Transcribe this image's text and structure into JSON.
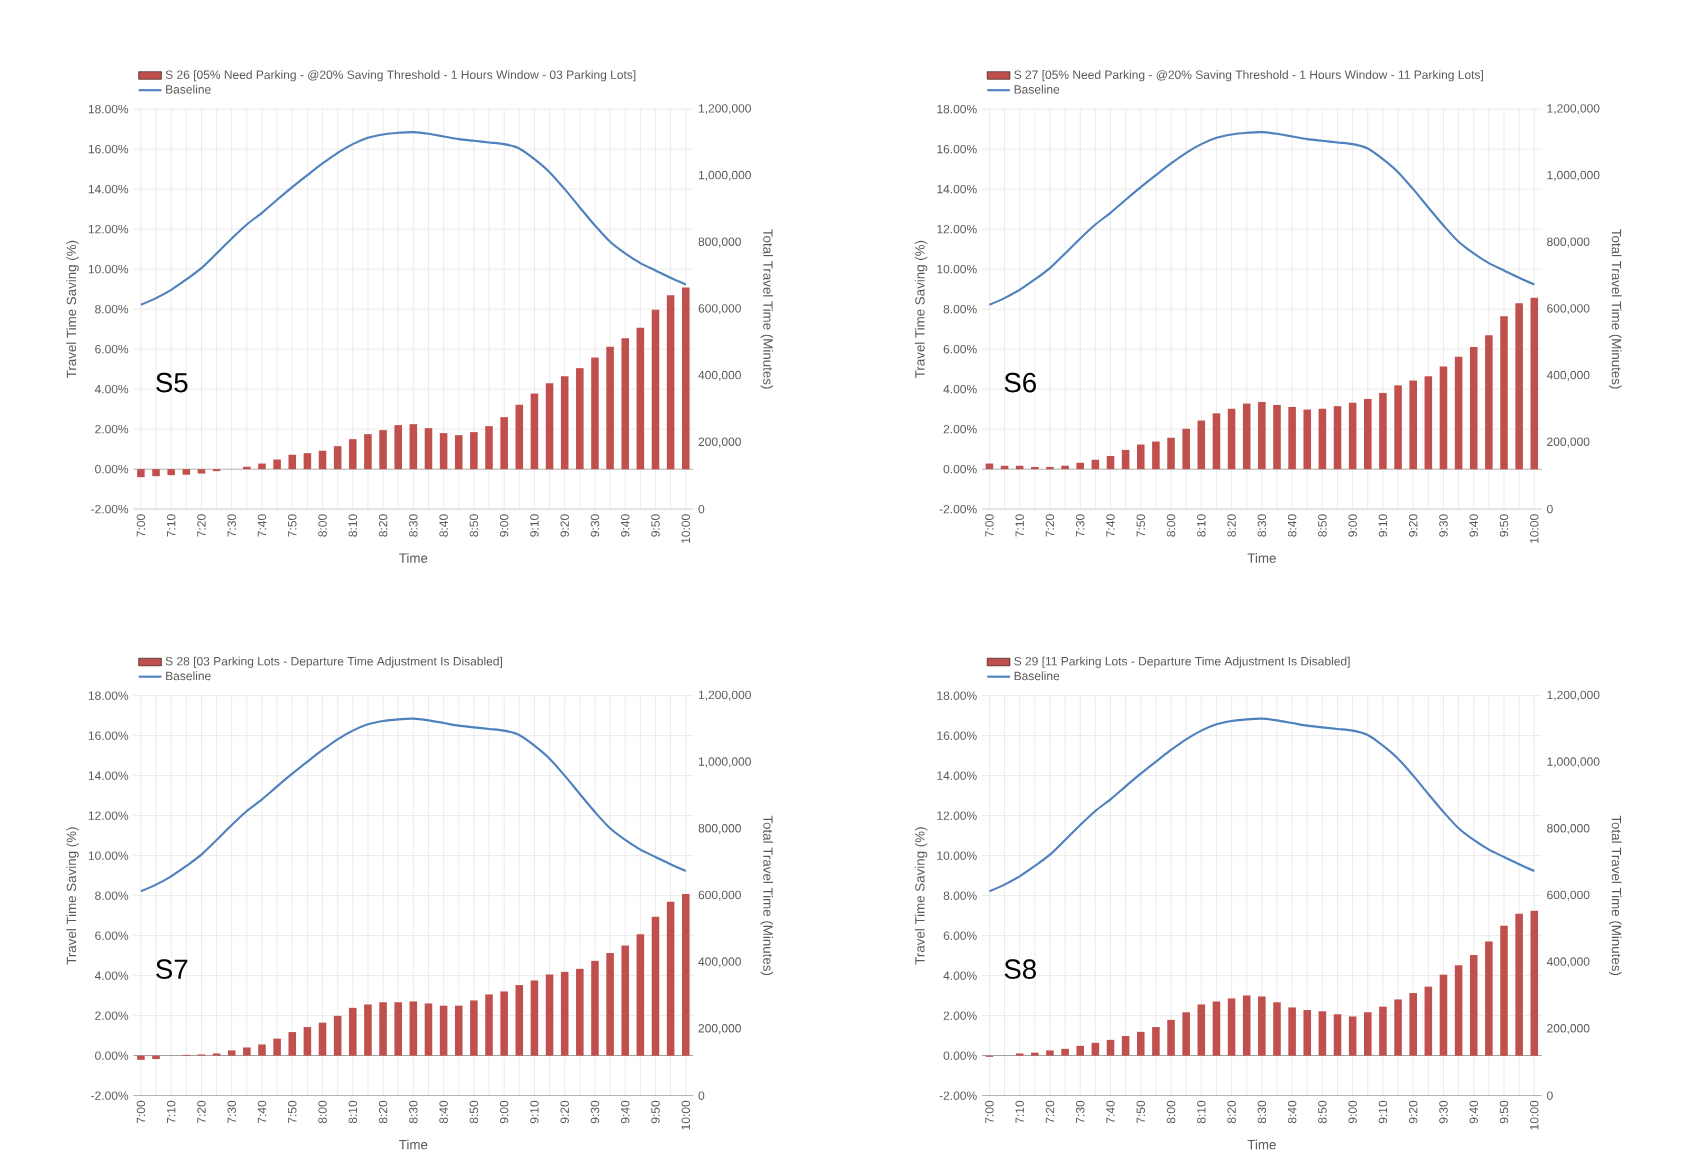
{
  "chart_data": [
    {
      "type": "bar",
      "categories": [
        "7:00",
        null,
        "7:10",
        null,
        "7:20",
        null,
        "7:30",
        null,
        "7:40",
        null,
        "7:50",
        null,
        "8:00",
        null,
        "8:10",
        null,
        "8:20",
        null,
        "8:30",
        null,
        "8:40",
        null,
        "8:50",
        null,
        "9:00",
        null,
        "9:10",
        null,
        "9:20",
        null,
        "9:30",
        null,
        "9:40",
        null,
        "9:50",
        null,
        "10:00"
      ],
      "series": [
        {
          "name": "S 26 [05% Need Parking - @20% Saving Threshold - 1 Hours Window - 03 Parking Lots]",
          "color": "#c0504d",
          "values": [
            -0.4,
            -0.35,
            -0.3,
            -0.28,
            -0.22,
            -0.1,
            0.0,
            0.12,
            0.28,
            0.48,
            0.72,
            0.8,
            0.92,
            1.15,
            1.5,
            1.75,
            1.95,
            2.2,
            2.25,
            2.05,
            1.8,
            1.7,
            1.85,
            2.15,
            2.6,
            3.22,
            3.78,
            4.3,
            4.65,
            5.05,
            5.58,
            6.12,
            6.55,
            7.07,
            7.97,
            8.7,
            9.08
          ]
        },
        {
          "name": "Baseline",
          "type": "line",
          "axis": "y2",
          "color": "#4f81bd",
          "values": [
            613000,
            633000,
            658000,
            689000,
            723000,
            767000,
            812000,
            854000,
            889000,
            928000,
            966000,
            1002000,
            1037000,
            1069000,
            1095000,
            1114000,
            1124000,
            1129000,
            1131000,
            1126000,
            1118000,
            1110000,
            1105000,
            1100000,
            1095000,
            1082000,
            1050000,
            1011000,
            960000,
            905000,
            851000,
            802000,
            767000,
            738000,
            716000,
            694000,
            674000
          ]
        }
      ],
      "xlabel": "Time",
      "ylabel": "Travel Time Saving (%)",
      "y2label": "Total Travel Time (Minutes)",
      "ylim": [
        -2,
        18
      ],
      "yticks": [
        {
          "value": -2,
          "label": "-2.00%"
        },
        {
          "value": 0,
          "label": "0.00%"
        },
        {
          "value": 2,
          "label": "2.00%"
        },
        {
          "value": 4,
          "label": "4.00%"
        },
        {
          "value": 6,
          "label": "6.00%"
        },
        {
          "value": 8,
          "label": "8.00%"
        },
        {
          "value": 10,
          "label": "10.00%"
        },
        {
          "value": 12,
          "label": "12.00%"
        },
        {
          "value": 14,
          "label": "14.00%"
        },
        {
          "value": 16,
          "label": "16.00%"
        },
        {
          "value": 18,
          "label": "18.00%"
        }
      ],
      "y2lim": [
        0,
        1200000
      ],
      "y2ticks": [
        0,
        {
          "value": 200000,
          "label": "200,000"
        },
        {
          "value": 400000,
          "label": "400,000"
        },
        {
          "value": 600000,
          "label": "600,000"
        },
        {
          "value": 800000,
          "label": "800,000"
        },
        {
          "value": 1000000,
          "label": "1,000,000"
        },
        {
          "value": 1200000,
          "label": "1,200,000"
        }
      ],
      "grid": true,
      "legend": "top",
      "annotations": [
        "S5"
      ]
    },
    {
      "type": "bar",
      "categories": [
        "7:00",
        null,
        "7:10",
        null,
        "7:20",
        null,
        "7:30",
        null,
        "7:40",
        null,
        "7:50",
        null,
        "8:00",
        null,
        "8:10",
        null,
        "8:20",
        null,
        "8:30",
        null,
        "8:40",
        null,
        "8:50",
        null,
        "9:00",
        null,
        "9:10",
        null,
        "9:20",
        null,
        "9:30",
        null,
        "9:40",
        null,
        "9:50",
        null,
        "10:00"
      ],
      "series": [
        {
          "name": "S 27 [05% Need Parking - @20% Saving Threshold - 1 Hours Window - 11 Parking Lots]",
          "color": "#c0504d",
          "values": [
            0.28,
            0.17,
            0.17,
            0.11,
            0.11,
            0.17,
            0.32,
            0.47,
            0.66,
            0.96,
            1.23,
            1.38,
            1.57,
            2.02,
            2.43,
            2.79,
            3.02,
            3.28,
            3.36,
            3.21,
            3.11,
            2.98,
            3.02,
            3.15,
            3.32,
            3.51,
            3.81,
            4.19,
            4.43,
            4.64,
            5.13,
            5.62,
            6.11,
            6.7,
            7.64,
            8.3,
            8.57
          ]
        },
        {
          "name": "Baseline",
          "type": "line",
          "axis": "y2",
          "color": "#4f81bd",
          "values": [
            613000,
            633000,
            658000,
            689000,
            723000,
            767000,
            812000,
            854000,
            889000,
            928000,
            966000,
            1002000,
            1037000,
            1069000,
            1095000,
            1114000,
            1124000,
            1129000,
            1131000,
            1126000,
            1118000,
            1110000,
            1105000,
            1100000,
            1095000,
            1082000,
            1050000,
            1011000,
            960000,
            905000,
            851000,
            802000,
            767000,
            738000,
            716000,
            694000,
            674000
          ]
        }
      ],
      "xlabel": "Time",
      "ylabel": "Travel Time Saving (%)",
      "y2label": "Total Travel Time (Minutes)",
      "ylim": [
        -2,
        18
      ],
      "yticks": [
        {
          "value": -2,
          "label": "-2.00%"
        },
        {
          "value": 0,
          "label": "0.00%"
        },
        {
          "value": 2,
          "label": "2.00%"
        },
        {
          "value": 4,
          "label": "4.00%"
        },
        {
          "value": 6,
          "label": "6.00%"
        },
        {
          "value": 8,
          "label": "8.00%"
        },
        {
          "value": 10,
          "label": "10.00%"
        },
        {
          "value": 12,
          "label": "12.00%"
        },
        {
          "value": 14,
          "label": "14.00%"
        },
        {
          "value": 16,
          "label": "16.00%"
        },
        {
          "value": 18,
          "label": "18.00%"
        }
      ],
      "y2lim": [
        0,
        1200000
      ],
      "y2ticks": [
        0,
        {
          "value": 200000,
          "label": "200,000"
        },
        {
          "value": 400000,
          "label": "400,000"
        },
        {
          "value": 600000,
          "label": "600,000"
        },
        {
          "value": 800000,
          "label": "800,000"
        },
        {
          "value": 1000000,
          "label": "1,000,000"
        },
        {
          "value": 1200000,
          "label": "1,200,000"
        }
      ],
      "grid": true,
      "legend": "top",
      "annotations": [
        "S6"
      ]
    },
    {
      "type": "bar",
      "categories": [
        "7:00",
        null,
        "7:10",
        null,
        "7:20",
        null,
        "7:30",
        null,
        "7:40",
        null,
        "7:50",
        null,
        "8:00",
        null,
        "8:10",
        null,
        "8:20",
        null,
        "8:30",
        null,
        "8:40",
        null,
        "8:50",
        null,
        "9:00",
        null,
        "9:10",
        null,
        "9:20",
        null,
        "9:30",
        null,
        "9:40",
        null,
        "9:50",
        null,
        "10:00"
      ],
      "series": [
        {
          "name": "S 28 [03 Parking Lots - Departure Time Adjustment Is Disabled]",
          "color": "#c0504d",
          "values": [
            -0.21,
            -0.17,
            0.0,
            0.04,
            0.06,
            0.11,
            0.26,
            0.41,
            0.56,
            0.85,
            1.18,
            1.43,
            1.65,
            1.99,
            2.39,
            2.56,
            2.67,
            2.67,
            2.71,
            2.61,
            2.5,
            2.5,
            2.76,
            3.06,
            3.21,
            3.53,
            3.76,
            4.06,
            4.19,
            4.34,
            4.74,
            5.13,
            5.51,
            6.07,
            6.94,
            7.69,
            8.08
          ]
        },
        {
          "name": "Baseline",
          "type": "line",
          "axis": "y2",
          "color": "#4f81bd",
          "values": [
            613000,
            633000,
            658000,
            689000,
            723000,
            767000,
            812000,
            854000,
            889000,
            928000,
            966000,
            1002000,
            1037000,
            1069000,
            1095000,
            1114000,
            1124000,
            1129000,
            1131000,
            1126000,
            1118000,
            1110000,
            1105000,
            1100000,
            1095000,
            1082000,
            1050000,
            1011000,
            960000,
            905000,
            851000,
            802000,
            767000,
            738000,
            716000,
            694000,
            674000
          ]
        }
      ],
      "xlabel": "Time",
      "ylabel": "Travel Time Saving (%)",
      "y2label": "Total Travel Time (Minutes)",
      "ylim": [
        -2,
        18
      ],
      "yticks": [
        {
          "value": -2,
          "label": "-2.00%"
        },
        {
          "value": 0,
          "label": "0.00%"
        },
        {
          "value": 2,
          "label": "2.00%"
        },
        {
          "value": 4,
          "label": "4.00%"
        },
        {
          "value": 6,
          "label": "6.00%"
        },
        {
          "value": 8,
          "label": "8.00%"
        },
        {
          "value": 10,
          "label": "10.00%"
        },
        {
          "value": 12,
          "label": "12.00%"
        },
        {
          "value": 14,
          "label": "14.00%"
        },
        {
          "value": 16,
          "label": "16.00%"
        },
        {
          "value": 18,
          "label": "18.00%"
        }
      ],
      "y2lim": [
        0,
        1200000
      ],
      "y2ticks": [
        0,
        {
          "value": 200000,
          "label": "200,000"
        },
        {
          "value": 400000,
          "label": "400,000"
        },
        {
          "value": 600000,
          "label": "600,000"
        },
        {
          "value": 800000,
          "label": "800,000"
        },
        {
          "value": 1000000,
          "label": "1,000,000"
        },
        {
          "value": 1200000,
          "label": "1,200,000"
        }
      ],
      "grid": true,
      "legend": "top",
      "annotations": [
        "S7"
      ]
    },
    {
      "type": "bar",
      "categories": [
        "7:00",
        null,
        "7:10",
        null,
        "7:20",
        null,
        "7:30",
        null,
        "7:40",
        null,
        "7:50",
        null,
        "8:00",
        null,
        "8:10",
        null,
        "8:20",
        null,
        "8:30",
        null,
        "8:40",
        null,
        "8:50",
        null,
        "9:00",
        null,
        "9:10",
        null,
        "9:20",
        null,
        "9:30",
        null,
        "9:40",
        null,
        "9:50",
        null,
        "10:00"
      ],
      "series": [
        {
          "name": "S 29 [11 Parking Lots - Departure Time Adjustment Is Disabled]",
          "color": "#c0504d",
          "values": [
            -0.06,
            0.0,
            0.11,
            0.15,
            0.26,
            0.34,
            0.49,
            0.64,
            0.79,
            0.98,
            1.19,
            1.43,
            1.79,
            2.17,
            2.56,
            2.71,
            2.86,
            3.01,
            2.96,
            2.67,
            2.41,
            2.28,
            2.22,
            2.07,
            1.96,
            2.17,
            2.45,
            2.81,
            3.13,
            3.45,
            4.05,
            4.52,
            5.03,
            5.71,
            6.5,
            7.1,
            7.25
          ]
        },
        {
          "name": "Baseline",
          "type": "line",
          "axis": "y2",
          "color": "#4f81bd",
          "values": [
            613000,
            633000,
            658000,
            689000,
            723000,
            767000,
            812000,
            854000,
            889000,
            928000,
            966000,
            1002000,
            1037000,
            1069000,
            1095000,
            1114000,
            1124000,
            1129000,
            1131000,
            1126000,
            1118000,
            1110000,
            1105000,
            1100000,
            1095000,
            1082000,
            1050000,
            1011000,
            960000,
            905000,
            851000,
            802000,
            767000,
            738000,
            716000,
            694000,
            674000
          ]
        }
      ],
      "xlabel": "Time",
      "ylabel": "Travel Time Saving (%)",
      "y2label": "Total Travel Time (Minutes)",
      "ylim": [
        -2,
        18
      ],
      "yticks": [
        {
          "value": -2,
          "label": "-2.00%"
        },
        {
          "value": 0,
          "label": "0.00%"
        },
        {
          "value": 2,
          "label": "2.00%"
        },
        {
          "value": 4,
          "label": "4.00%"
        },
        {
          "value": 6,
          "label": "6.00%"
        },
        {
          "value": 8,
          "label": "8.00%"
        },
        {
          "value": 10,
          "label": "10.00%"
        },
        {
          "value": 12,
          "label": "12.00%"
        },
        {
          "value": 14,
          "label": "14.00%"
        },
        {
          "value": 16,
          "label": "16.00%"
        },
        {
          "value": 18,
          "label": "18.00%"
        }
      ],
      "y2lim": [
        0,
        1200000
      ],
      "y2ticks": [
        0,
        {
          "value": 200000,
          "label": "200,000"
        },
        {
          "value": 400000,
          "label": "400,000"
        },
        {
          "value": 600000,
          "label": "600,000"
        },
        {
          "value": 800000,
          "label": "800,000"
        },
        {
          "value": 1000000,
          "label": "1,000,000"
        },
        {
          "value": 1200000,
          "label": "1,200,000"
        }
      ],
      "grid": true,
      "legend": "top",
      "annotations": [
        "S8"
      ]
    }
  ]
}
